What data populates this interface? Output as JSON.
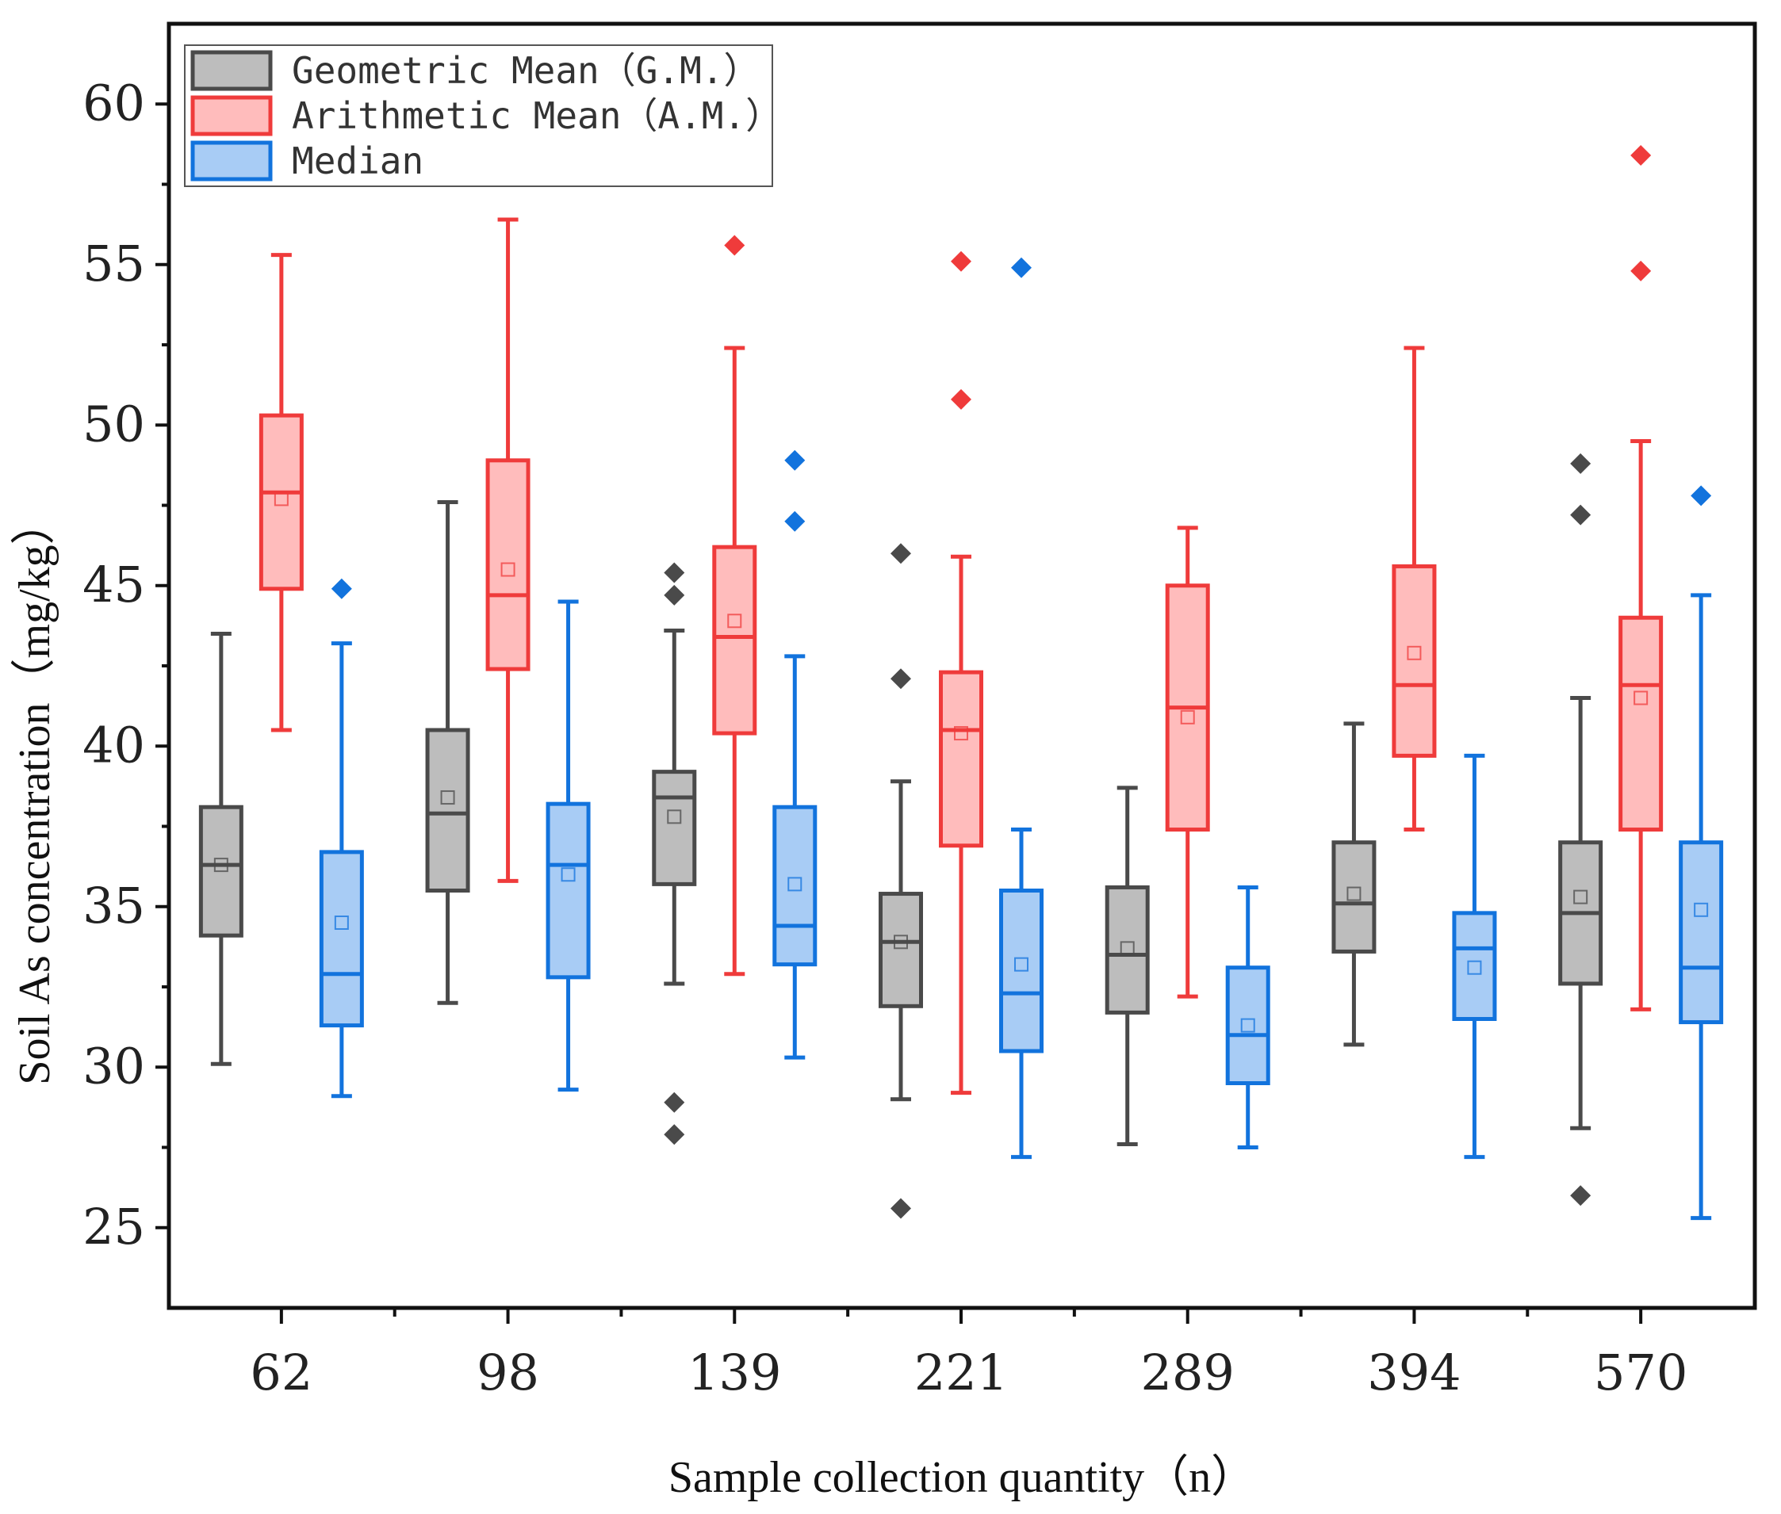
{
  "chart_data": {
    "type": "box",
    "categories": [
      "62",
      "98",
      "139",
      "221",
      "289",
      "394",
      "570"
    ],
    "xlabel": "Sample collection quantity（n）",
    "ylabel": "Soil As concentration（mg/kg）",
    "ylim": [
      22.5,
      62.5
    ],
    "yticks": [
      25,
      30,
      35,
      40,
      45,
      50,
      55,
      60
    ],
    "legend_position": "top-left",
    "series": [
      {
        "name": "Geometric Mean（G.M.）",
        "stroke": "#4a4a4a",
        "fill": "#bdbdbd",
        "boxes": [
          {
            "whisker_low": 30.1,
            "q1": 34.1,
            "median": 36.3,
            "q3": 38.1,
            "whisker_high": 43.5,
            "mean": 36.3,
            "outliers": []
          },
          {
            "whisker_low": 32.0,
            "q1": 35.5,
            "median": 37.9,
            "q3": 40.5,
            "whisker_high": 47.6,
            "mean": 38.4,
            "outliers": []
          },
          {
            "whisker_low": 32.6,
            "q1": 35.7,
            "median": 38.4,
            "q3": 39.2,
            "whisker_high": 43.6,
            "mean": 37.8,
            "outliers": [
              27.9,
              28.9,
              44.7,
              45.4
            ]
          },
          {
            "whisker_low": 29.0,
            "q1": 31.9,
            "median": 33.9,
            "q3": 35.4,
            "whisker_high": 38.9,
            "mean": 33.9,
            "outliers": [
              25.6,
              42.1,
              46.0
            ]
          },
          {
            "whisker_low": 27.6,
            "q1": 31.7,
            "median": 33.5,
            "q3": 35.6,
            "whisker_high": 38.7,
            "mean": 33.7,
            "outliers": []
          },
          {
            "whisker_low": 30.7,
            "q1": 33.6,
            "median": 35.1,
            "q3": 37.0,
            "whisker_high": 40.7,
            "mean": 35.4,
            "outliers": []
          },
          {
            "whisker_low": 28.1,
            "q1": 32.6,
            "median": 34.8,
            "q3": 37.0,
            "whisker_high": 41.5,
            "mean": 35.3,
            "outliers": [
              26.0,
              47.2,
              48.8
            ]
          }
        ]
      },
      {
        "name": "Arithmetic Mean（A.M.）",
        "stroke": "#ef3b3b",
        "fill": "#ffbcbc",
        "boxes": [
          {
            "whisker_low": 40.5,
            "q1": 44.9,
            "median": 47.9,
            "q3": 50.3,
            "whisker_high": 55.3,
            "mean": 47.7,
            "outliers": []
          },
          {
            "whisker_low": 35.8,
            "q1": 42.4,
            "median": 44.7,
            "q3": 48.9,
            "whisker_high": 56.4,
            "mean": 45.5,
            "outliers": []
          },
          {
            "whisker_low": 32.9,
            "q1": 40.4,
            "median": 43.4,
            "q3": 46.2,
            "whisker_high": 52.4,
            "mean": 43.9,
            "outliers": [
              55.6
            ]
          },
          {
            "whisker_low": 29.2,
            "q1": 36.9,
            "median": 40.5,
            "q3": 42.3,
            "whisker_high": 45.9,
            "mean": 40.4,
            "outliers": [
              50.8,
              55.1
            ]
          },
          {
            "whisker_low": 32.2,
            "q1": 37.4,
            "median": 41.2,
            "q3": 45.0,
            "whisker_high": 46.8,
            "mean": 40.9,
            "outliers": []
          },
          {
            "whisker_low": 37.4,
            "q1": 39.7,
            "median": 41.9,
            "q3": 45.6,
            "whisker_high": 52.4,
            "mean": 42.9,
            "outliers": []
          },
          {
            "whisker_low": 31.8,
            "q1": 37.4,
            "median": 41.9,
            "q3": 44.0,
            "whisker_high": 49.5,
            "mean": 41.5,
            "outliers": [
              54.8,
              58.4
            ]
          }
        ]
      },
      {
        "name": "Median",
        "stroke": "#1273dd",
        "fill": "#a8ccf5",
        "boxes": [
          {
            "whisker_low": 29.1,
            "q1": 31.3,
            "median": 32.9,
            "q3": 36.7,
            "whisker_high": 43.2,
            "mean": 34.5,
            "outliers": [
              44.9
            ]
          },
          {
            "whisker_low": 29.3,
            "q1": 32.8,
            "median": 36.3,
            "q3": 38.2,
            "whisker_high": 44.5,
            "mean": 36.0,
            "outliers": []
          },
          {
            "whisker_low": 30.3,
            "q1": 33.2,
            "median": 34.4,
            "q3": 38.1,
            "whisker_high": 42.8,
            "mean": 35.7,
            "outliers": [
              47.0,
              48.9
            ]
          },
          {
            "whisker_low": 27.2,
            "q1": 30.5,
            "median": 32.3,
            "q3": 35.5,
            "whisker_high": 37.4,
            "mean": 33.2,
            "outliers": [
              54.9
            ]
          },
          {
            "whisker_low": 27.5,
            "q1": 29.5,
            "median": 31.0,
            "q3": 33.1,
            "whisker_high": 35.6,
            "mean": 31.3,
            "outliers": []
          },
          {
            "whisker_low": 27.2,
            "q1": 31.5,
            "median": 33.7,
            "q3": 34.8,
            "whisker_high": 39.7,
            "mean": 33.1,
            "outliers": []
          },
          {
            "whisker_low": 25.3,
            "q1": 31.4,
            "median": 33.1,
            "q3": 37.0,
            "whisker_high": 44.7,
            "mean": 34.9,
            "outliers": [
              47.8
            ]
          }
        ]
      }
    ]
  }
}
